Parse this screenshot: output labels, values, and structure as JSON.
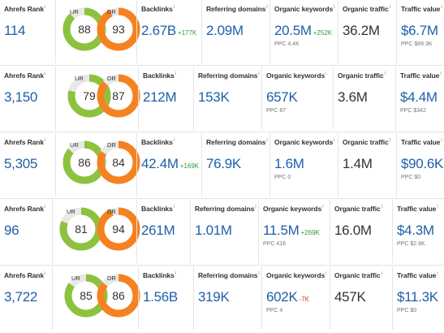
{
  "colors": {
    "accent": "#1f5fa8",
    "ur_ring": "#8cc23e",
    "dr_ring": "#f58220",
    "positive": "#2f9a3a",
    "negative": "#d23a2a"
  },
  "labels": {
    "ahrefs_rank": "Ahrefs Rank",
    "ur": "UR",
    "dr": "DR",
    "backlinks": "Backlinks",
    "referring_domains": "Referring domains",
    "organic_keywords": "Organic keywords",
    "organic_traffic": "Organic traffic",
    "traffic_value": "Traffic value",
    "info": "i"
  },
  "rows": [
    {
      "ahrefs_rank": "114",
      "ur": "88",
      "dr": "93",
      "ur_fraction": 0.88,
      "dr_fraction": 0.93,
      "backlinks": "2.67B",
      "backlinks_delta": "+177K",
      "referring_domains": "2.09M",
      "organic_keywords": "20.5M",
      "organic_keywords_delta": "+252K",
      "ppc": "PPC 4.4K",
      "organic_traffic": "36.2M",
      "traffic_value": "$6.7M",
      "traffic_value_ppc": "PPC $89.3K"
    },
    {
      "ahrefs_rank": "3,150",
      "ur": "79",
      "dr": "87",
      "ur_fraction": 0.79,
      "dr_fraction": 0.87,
      "backlinks": "212M",
      "backlinks_delta": "",
      "referring_domains": "153K",
      "organic_keywords": "657K",
      "organic_keywords_delta": "",
      "ppc": "PPC 87",
      "organic_traffic": "3.6M",
      "traffic_value": "$4.4M",
      "traffic_value_ppc": "PPC $342"
    },
    {
      "ahrefs_rank": "5,305",
      "ur": "86",
      "dr": "84",
      "ur_fraction": 0.86,
      "dr_fraction": 0.84,
      "backlinks": "42.4M",
      "backlinks_delta": "+169K",
      "referring_domains": "76.9K",
      "organic_keywords": "1.6M",
      "organic_keywords_delta": "",
      "ppc": "PPC 0",
      "organic_traffic": "1.4M",
      "traffic_value": "$90.6K",
      "traffic_value_ppc": "PPC $0"
    },
    {
      "ahrefs_rank": "96",
      "ur": "81",
      "dr": "94",
      "ur_fraction": 0.81,
      "dr_fraction": 0.94,
      "backlinks": "261M",
      "backlinks_delta": "",
      "referring_domains": "1.01M",
      "organic_keywords": "11.5M",
      "organic_keywords_delta": "+269K",
      "ppc": "PPC 416",
      "organic_traffic": "16.0M",
      "traffic_value": "$4.3M",
      "traffic_value_ppc": "PPC $2.8K"
    },
    {
      "ahrefs_rank": "3,722",
      "ur": "85",
      "dr": "86",
      "ur_fraction": 0.85,
      "dr_fraction": 0.86,
      "backlinks": "1.56B",
      "backlinks_delta": "",
      "referring_domains": "319K",
      "organic_keywords": "602K",
      "organic_keywords_delta": "-7K",
      "ppc": "PPC 4",
      "organic_traffic": "457K",
      "traffic_value": "$11.3K",
      "traffic_value_ppc": "PPC $0"
    }
  ]
}
